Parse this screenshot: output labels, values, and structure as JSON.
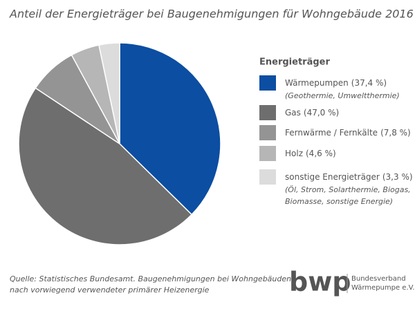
{
  "chart_data": {
    "type": "pie",
    "title": "Anteil der Energieträger bei Baugenehmigungen für Wohngebäude 2016",
    "legend_title": "Energieträger",
    "categories": [
      "Wärmepumpen",
      "Gas",
      "Fernwärme / Fernkälte",
      "Holz",
      "sonstige Energieträger"
    ],
    "values": [
      37.4,
      47.0,
      7.8,
      4.6,
      3.3
    ],
    "value_labels": [
      "(37,4 %)",
      "(47,0 %)",
      "(7,8 %)",
      "(4,6 %)",
      "(3,3 %)"
    ],
    "descriptions": [
      [
        "(Geothermie, Umweltthermie)"
      ],
      null,
      null,
      null,
      [
        "(Öl, Strom, Solarthermie, Biogas,",
        "Biomasse, sonstige Energie)"
      ]
    ],
    "colors": [
      "#0b4ea2",
      "#6e6e6e",
      "#949494",
      "#b6b6b6",
      "#dcdcdc"
    ],
    "legend": "right"
  },
  "source": [
    "Quelle: Statistisches Bundesamt. Baugenehmigungen bei Wohngebäuden",
    "nach vorwiegend verwendeter primärer Heizenergie"
  ],
  "logo": {
    "mark": "bwp",
    "lines": [
      "Bundesverband",
      "Wärmepumpe e.V."
    ]
  }
}
